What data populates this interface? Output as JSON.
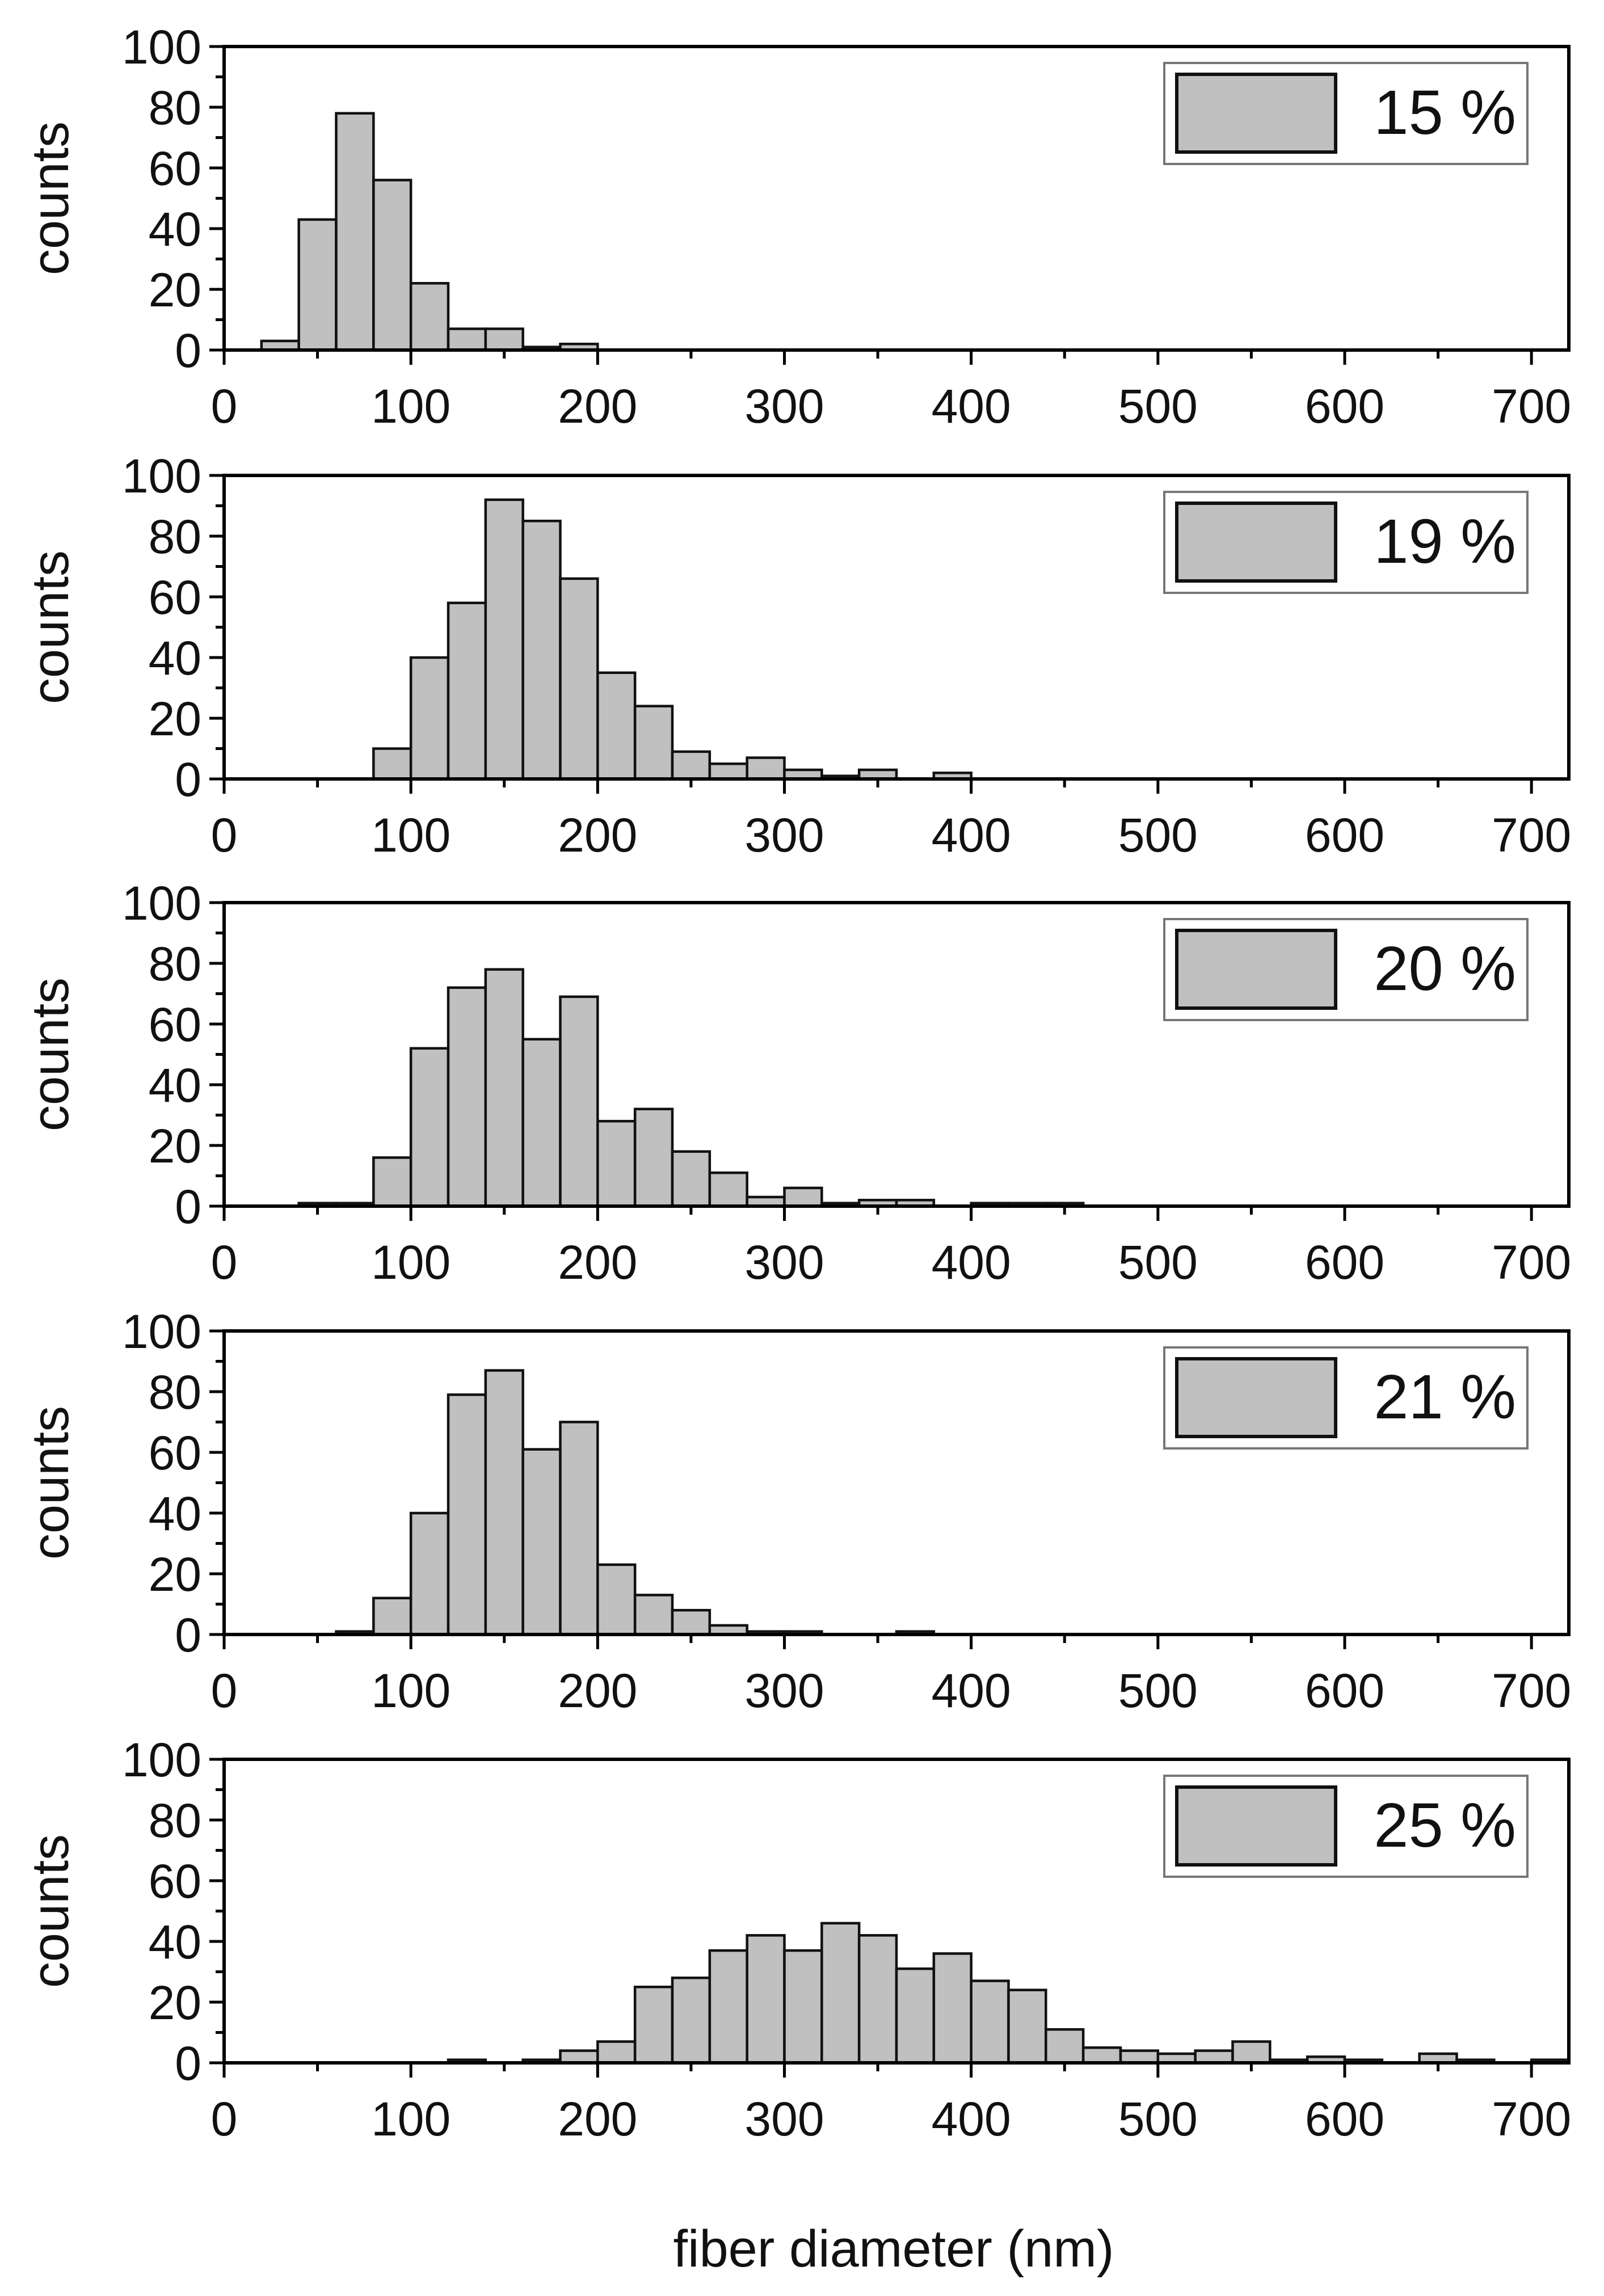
{
  "colors": {
    "bar_fill": "#c0c0c0",
    "bar_stroke": "#111111",
    "frame": "#000000"
  },
  "x_axis_title": "fiber diameter (nm)",
  "chart_data": [
    {
      "type": "bar",
      "xlabel": "fiber diameter (nm)",
      "ylabel": "counts",
      "legend": "15 %",
      "legend_position": "top-right",
      "xlim": [
        0,
        720
      ],
      "ylim": [
        0,
        100
      ],
      "bin_width": 20,
      "xticks": [
        0,
        100,
        200,
        300,
        400,
        500,
        600,
        700
      ],
      "xtick_labels": [
        "0",
        "100",
        "200",
        "300",
        "400",
        "500",
        "600",
        "700"
      ],
      "yticks": [
        0,
        20,
        40,
        60,
        80,
        100
      ],
      "ytick_labels": [
        "0",
        "20",
        "40",
        "60",
        "80",
        "100"
      ],
      "bins": [
        {
          "x": 20,
          "y": 3
        },
        {
          "x": 40,
          "y": 43
        },
        {
          "x": 60,
          "y": 78
        },
        {
          "x": 80,
          "y": 56
        },
        {
          "x": 100,
          "y": 22
        },
        {
          "x": 120,
          "y": 7
        },
        {
          "x": 140,
          "y": 7
        },
        {
          "x": 160,
          "y": 1
        },
        {
          "x": 180,
          "y": 2
        }
      ]
    },
    {
      "type": "bar",
      "xlabel": "fiber diameter (nm)",
      "ylabel": "counts",
      "legend": "19 %",
      "legend_position": "top-right",
      "xlim": [
        0,
        720
      ],
      "ylim": [
        0,
        100
      ],
      "bin_width": 20,
      "xticks": [
        0,
        100,
        200,
        300,
        400,
        500,
        600,
        700
      ],
      "xtick_labels": [
        "0",
        "100",
        "200",
        "300",
        "400",
        "500",
        "600",
        "700"
      ],
      "yticks": [
        0,
        20,
        40,
        60,
        80,
        100
      ],
      "ytick_labels": [
        "0",
        "20",
        "40",
        "60",
        "80",
        "100"
      ],
      "bins": [
        {
          "x": 80,
          "y": 10
        },
        {
          "x": 100,
          "y": 40
        },
        {
          "x": 120,
          "y": 58
        },
        {
          "x": 140,
          "y": 92
        },
        {
          "x": 160,
          "y": 85
        },
        {
          "x": 180,
          "y": 66
        },
        {
          "x": 200,
          "y": 35
        },
        {
          "x": 220,
          "y": 24
        },
        {
          "x": 240,
          "y": 9
        },
        {
          "x": 260,
          "y": 5
        },
        {
          "x": 280,
          "y": 7
        },
        {
          "x": 300,
          "y": 3
        },
        {
          "x": 320,
          "y": 1
        },
        {
          "x": 340,
          "y": 3
        },
        {
          "x": 380,
          "y": 2
        }
      ]
    },
    {
      "type": "bar",
      "xlabel": "fiber diameter (nm)",
      "ylabel": "counts",
      "legend": "20 %",
      "legend_position": "top-right",
      "xlim": [
        0,
        720
      ],
      "ylim": [
        0,
        100
      ],
      "bin_width": 20,
      "xticks": [
        0,
        100,
        200,
        300,
        400,
        500,
        600,
        700
      ],
      "xtick_labels": [
        "0",
        "100",
        "200",
        "300",
        "400",
        "500",
        "600",
        "700"
      ],
      "yticks": [
        0,
        20,
        40,
        60,
        80,
        100
      ],
      "ytick_labels": [
        "0",
        "20",
        "40",
        "60",
        "80",
        "100"
      ],
      "bins": [
        {
          "x": 40,
          "y": 1
        },
        {
          "x": 60,
          "y": 1
        },
        {
          "x": 80,
          "y": 16
        },
        {
          "x": 100,
          "y": 52
        },
        {
          "x": 120,
          "y": 72
        },
        {
          "x": 140,
          "y": 78
        },
        {
          "x": 160,
          "y": 55
        },
        {
          "x": 180,
          "y": 69
        },
        {
          "x": 200,
          "y": 28
        },
        {
          "x": 220,
          "y": 32
        },
        {
          "x": 240,
          "y": 18
        },
        {
          "x": 260,
          "y": 11
        },
        {
          "x": 280,
          "y": 3
        },
        {
          "x": 300,
          "y": 6
        },
        {
          "x": 320,
          "y": 1
        },
        {
          "x": 340,
          "y": 2
        },
        {
          "x": 360,
          "y": 2
        },
        {
          "x": 400,
          "y": 1
        },
        {
          "x": 420,
          "y": 1
        },
        {
          "x": 440,
          "y": 1
        }
      ]
    },
    {
      "type": "bar",
      "xlabel": "fiber diameter (nm)",
      "ylabel": "counts",
      "legend": "21 %",
      "legend_position": "top-right",
      "xlim": [
        0,
        720
      ],
      "ylim": [
        0,
        100
      ],
      "bin_width": 20,
      "xticks": [
        0,
        100,
        200,
        300,
        400,
        500,
        600,
        700
      ],
      "xtick_labels": [
        "0",
        "100",
        "200",
        "300",
        "400",
        "500",
        "600",
        "700"
      ],
      "yticks": [
        0,
        20,
        40,
        60,
        80,
        100
      ],
      "ytick_labels": [
        "0",
        "20",
        "40",
        "60",
        "80",
        "100"
      ],
      "bins": [
        {
          "x": 60,
          "y": 1
        },
        {
          "x": 80,
          "y": 12
        },
        {
          "x": 100,
          "y": 40
        },
        {
          "x": 120,
          "y": 79
        },
        {
          "x": 140,
          "y": 87
        },
        {
          "x": 160,
          "y": 61
        },
        {
          "x": 180,
          "y": 70
        },
        {
          "x": 200,
          "y": 23
        },
        {
          "x": 220,
          "y": 13
        },
        {
          "x": 240,
          "y": 8
        },
        {
          "x": 260,
          "y": 3
        },
        {
          "x": 280,
          "y": 1
        },
        {
          "x": 300,
          "y": 1
        },
        {
          "x": 360,
          "y": 1
        }
      ]
    },
    {
      "type": "bar",
      "xlabel": "fiber diameter (nm)",
      "ylabel": "counts",
      "legend": "25 %",
      "legend_position": "top-right",
      "xlim": [
        0,
        720
      ],
      "ylim": [
        0,
        100
      ],
      "bin_width": 20,
      "xticks": [
        0,
        100,
        200,
        300,
        400,
        500,
        600,
        700
      ],
      "xtick_labels": [
        "0",
        "100",
        "200",
        "300",
        "400",
        "500",
        "600",
        "700"
      ],
      "yticks": [
        0,
        20,
        40,
        60,
        80,
        100
      ],
      "ytick_labels": [
        "0",
        "20",
        "40",
        "60",
        "80",
        "100"
      ],
      "bins": [
        {
          "x": 120,
          "y": 1
        },
        {
          "x": 160,
          "y": 1
        },
        {
          "x": 180,
          "y": 4
        },
        {
          "x": 200,
          "y": 7
        },
        {
          "x": 220,
          "y": 25
        },
        {
          "x": 240,
          "y": 28
        },
        {
          "x": 260,
          "y": 37
        },
        {
          "x": 280,
          "y": 42
        },
        {
          "x": 300,
          "y": 37
        },
        {
          "x": 320,
          "y": 46
        },
        {
          "x": 340,
          "y": 42
        },
        {
          "x": 360,
          "y": 31
        },
        {
          "x": 380,
          "y": 36
        },
        {
          "x": 400,
          "y": 27
        },
        {
          "x": 420,
          "y": 24
        },
        {
          "x": 440,
          "y": 11
        },
        {
          "x": 460,
          "y": 5
        },
        {
          "x": 480,
          "y": 4
        },
        {
          "x": 500,
          "y": 3
        },
        {
          "x": 520,
          "y": 4
        },
        {
          "x": 540,
          "y": 7
        },
        {
          "x": 560,
          "y": 1
        },
        {
          "x": 580,
          "y": 2
        },
        {
          "x": 600,
          "y": 1
        },
        {
          "x": 640,
          "y": 3
        },
        {
          "x": 660,
          "y": 1
        },
        {
          "x": 700,
          "y": 1
        }
      ]
    }
  ]
}
